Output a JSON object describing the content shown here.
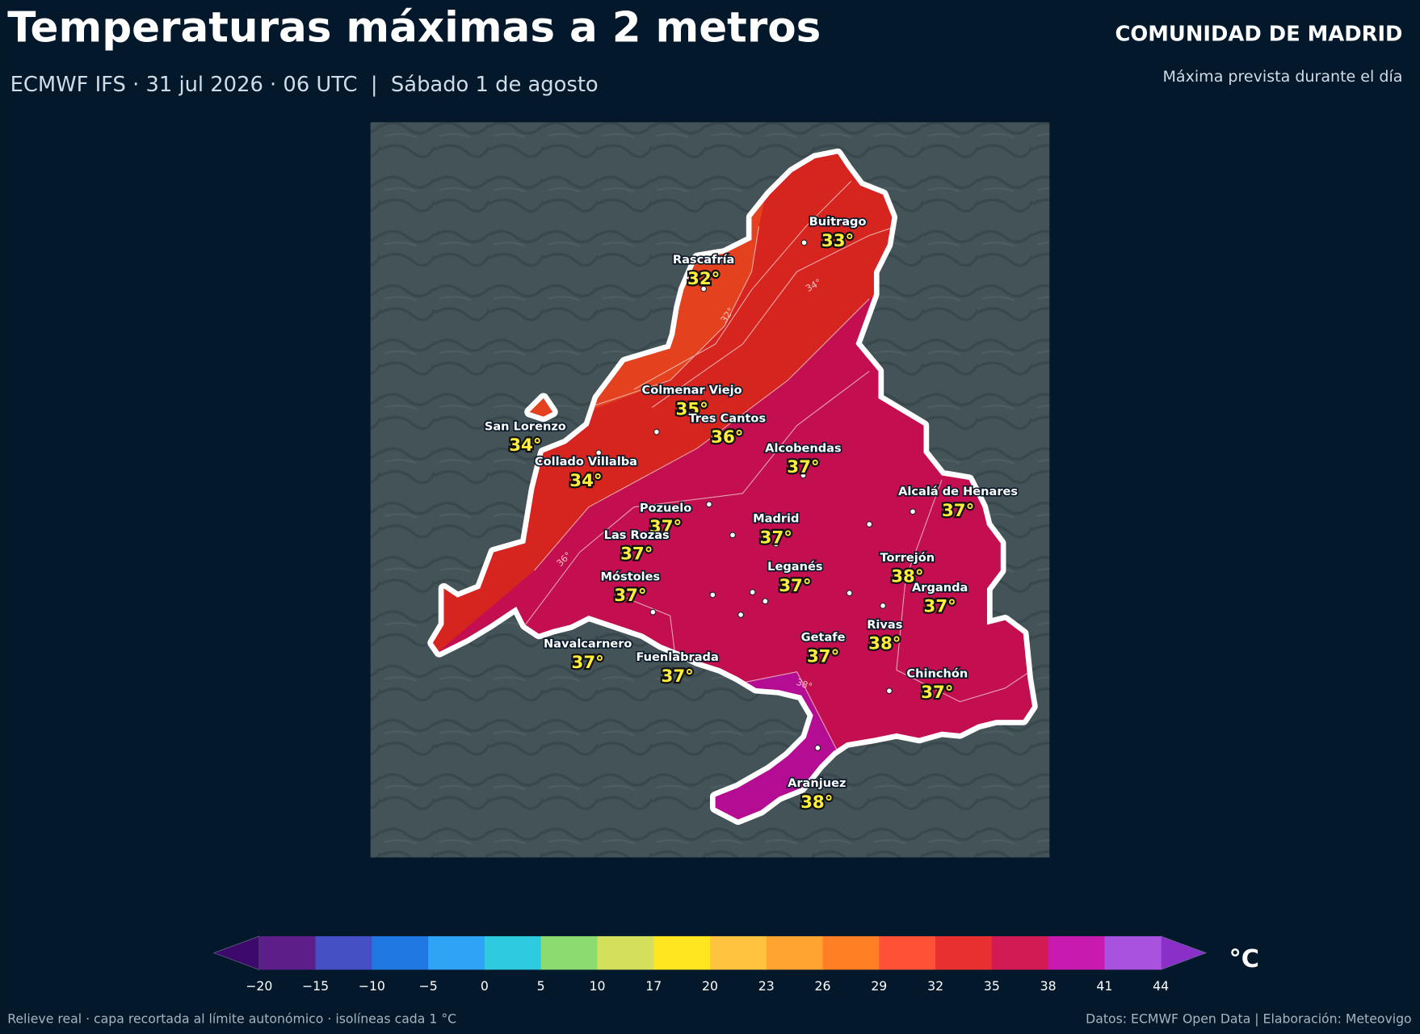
{
  "header": {
    "title": "Temperaturas máximas a 2 metros",
    "subtitle": "ECMWF IFS · 31 jul 2026 · 06 UTC  |  Sábado 1 de agosto",
    "region": "COMUNIDAD DE MADRID",
    "region_note": "Máxima prevista durante el día"
  },
  "map": {
    "cities": [
      {
        "name": "Buitrago",
        "temp": "33°"
      },
      {
        "name": "Rascafría",
        "temp": "32°"
      },
      {
        "name": "Colmenar Viejo",
        "temp": "35°"
      },
      {
        "name": "Tres Cantos",
        "temp": "36°"
      },
      {
        "name": "San Lorenzo",
        "temp": "34°"
      },
      {
        "name": "Collado Villalba",
        "temp": "34°"
      },
      {
        "name": "Alcobendas",
        "temp": "37°"
      },
      {
        "name": "Alcalá de Henares",
        "temp": "37°"
      },
      {
        "name": "Pozuelo",
        "temp": "37°"
      },
      {
        "name": "Madrid",
        "temp": "37°"
      },
      {
        "name": "Las Rozas",
        "temp": "37°"
      },
      {
        "name": "Torrejón",
        "temp": "38°"
      },
      {
        "name": "Móstoles",
        "temp": "37°"
      },
      {
        "name": "Leganés",
        "temp": "37°"
      },
      {
        "name": "Arganda",
        "temp": "37°"
      },
      {
        "name": "Rivas",
        "temp": "38°"
      },
      {
        "name": "Navalcarnero",
        "temp": "37°"
      },
      {
        "name": "Fuenlabrada",
        "temp": "37°"
      },
      {
        "name": "Getafe",
        "temp": "37°"
      },
      {
        "name": "Chinchón",
        "temp": "37°"
      },
      {
        "name": "Aranjuez",
        "temp": "38°"
      }
    ],
    "isoline_labels": [
      "32°",
      "34°",
      "36°",
      "38°"
    ]
  },
  "colorbar": {
    "unit": "°C",
    "ticks": [
      {
        "value": -20,
        "label": "−20"
      },
      {
        "value": -15,
        "label": "−15"
      },
      {
        "value": -10,
        "label": "−10"
      },
      {
        "value": -5,
        "label": "−5"
      },
      0,
      5,
      10,
      17,
      20,
      23,
      26,
      29,
      32,
      35,
      38,
      41,
      44
    ],
    "colors": [
      "#5c1f8a",
      "#4450c4",
      "#1f78e0",
      "#2fa3f5",
      "#2ecbe0",
      "#8cdb6e",
      "#d4e05c",
      "#ffe61e",
      "#ffc340",
      "#ffa330",
      "#ff7f22",
      "#ff5136",
      "#e83030",
      "#d21a55",
      "#c81aaf",
      "#a852e0"
    ],
    "under_color": "#3d0a6b",
    "over_color": "#8a2fc8"
  },
  "footer": {
    "left": "Relieve real · capa recortada al límite autonómico · isolíneas cada 1 °C",
    "right": "Datos: ECMWF Open Data | Elaboración: Meteovigo"
  }
}
